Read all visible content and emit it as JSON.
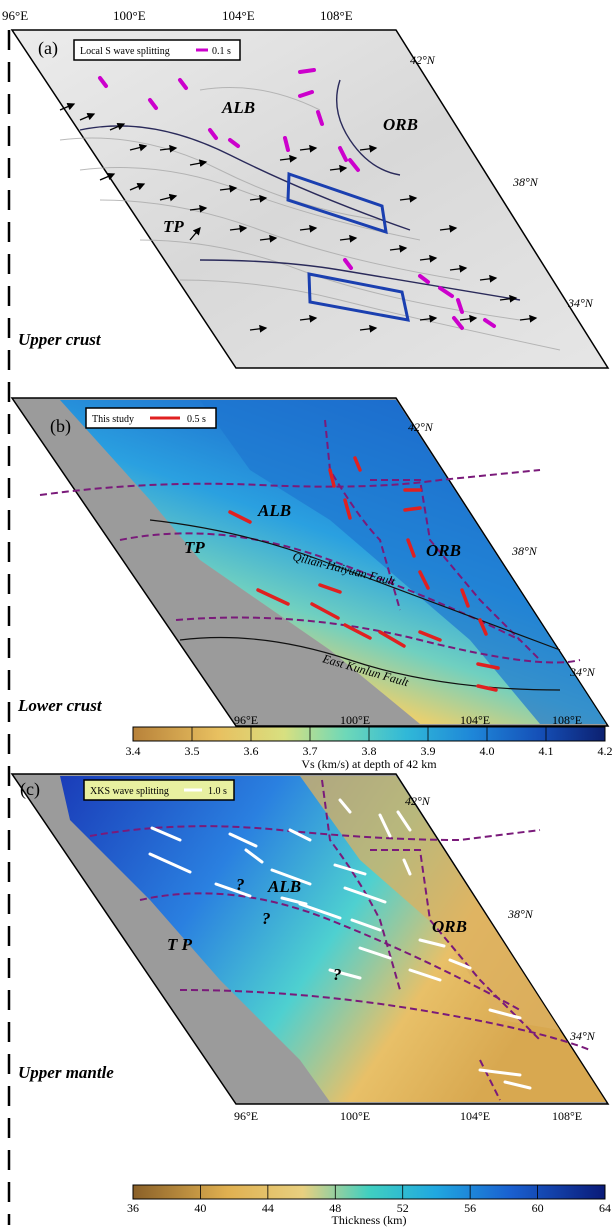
{
  "top_longitudes": [
    "96°E",
    "100°E",
    "104°E",
    "108°E"
  ],
  "panels": [
    {
      "id": "a",
      "letter": "(a)",
      "legend_text": "Local S wave splitting",
      "legend_scale": "0.1 s",
      "legend_color": "#cc00cc",
      "latitudes": [
        "42°N",
        "38°N",
        "34°N"
      ],
      "regions": [
        "ALB",
        "ORB",
        "TP"
      ],
      "depth_label": "Upper crust"
    },
    {
      "id": "b",
      "letter": "(b)",
      "legend_text": "This study",
      "legend_scale": "0.5 s",
      "legend_color": "#e02020",
      "latitudes": [
        "42°N",
        "38°N",
        "34°N"
      ],
      "regions": [
        "ALB",
        "TP",
        "ORB"
      ],
      "faults": [
        "Qilian-Haiyuan Fault",
        "East Kunlun Fault"
      ],
      "depth_label": "Lower crust",
      "colorbar": {
        "longitudes": [
          "96°E",
          "100°E",
          "104°E",
          "108°E"
        ],
        "ticks": [
          "3.4",
          "3.5",
          "3.6",
          "3.7",
          "3.8",
          "3.9",
          "4.0",
          "4.1",
          "4.2"
        ],
        "title": "Vs (km/s) at depth of 42 km"
      }
    },
    {
      "id": "c",
      "letter": "(c)",
      "legend_text": "XKS wave splitting",
      "legend_scale": "1.0 s",
      "legend_color": "#ffffff",
      "latitudes": [
        "42°N",
        "38°N",
        "34°N"
      ],
      "regions": [
        "ALB",
        "ORB",
        "T P"
      ],
      "question_marks": [
        "?",
        "?",
        "?"
      ],
      "depth_label": "Upper mantle",
      "colorbar": {
        "longitudes": [
          "96°E",
          "100°E",
          "104°E",
          "108°E"
        ],
        "ticks": [
          "36",
          "40",
          "44",
          "48",
          "52",
          "56",
          "60",
          "64"
        ],
        "title": "Thickness (km)"
      }
    }
  ],
  "colors": {
    "fault_dashed": "#7a1a7a",
    "box_blue": "#1a3fb0",
    "no_data_gray": "#9b9b9b"
  }
}
